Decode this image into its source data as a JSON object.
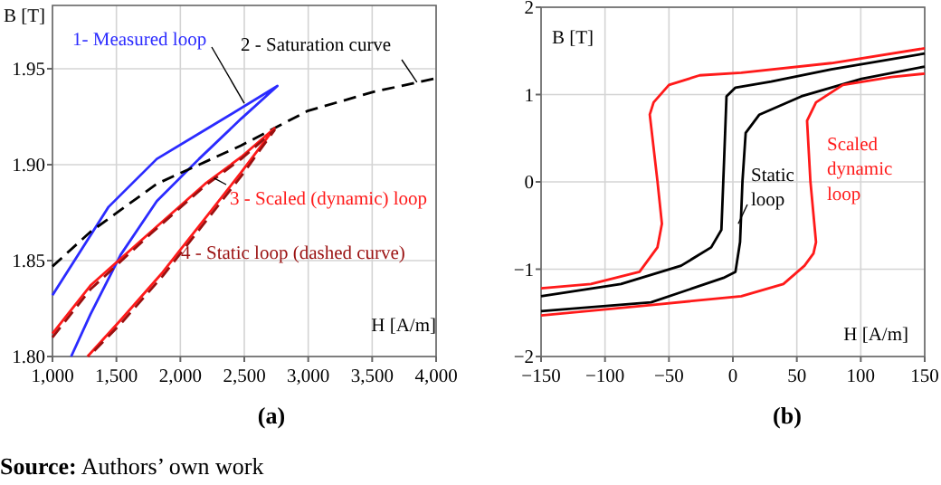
{
  "chart_data": [
    {
      "type": "line",
      "title": "(a)",
      "xlabel": "H [A/m]",
      "ylabel": "B [T]",
      "grid": true,
      "xlim": [
        1000,
        4000
      ],
      "ylim": [
        1.8,
        1.983
      ],
      "xticks": [
        {
          "value": 1000,
          "label": "1,000"
        },
        {
          "value": 1500,
          "label": "1,500"
        },
        {
          "value": 2000,
          "label": "2,000"
        },
        {
          "value": 2500,
          "label": "2,500"
        },
        {
          "value": 3000,
          "label": "3,000"
        },
        {
          "value": 3500,
          "label": "3,500"
        },
        {
          "value": 4000,
          "label": "4,000"
        }
      ],
      "yticks": [
        {
          "value": 1.8,
          "label": "1.80"
        },
        {
          "value": 1.85,
          "label": "1.85"
        },
        {
          "value": 1.9,
          "label": "1.90"
        },
        {
          "value": 1.95,
          "label": "1.95"
        }
      ],
      "series": [
        {
          "color": "#2b2bff",
          "line_style": "solid",
          "x": [
            1000,
            1439,
            1816,
            2241,
            2759,
            2476,
            2146,
            1816,
            1533,
            1297,
            1146
          ],
          "values": [
            1.832,
            1.878,
            1.903,
            1.92,
            1.941,
            1.924,
            1.903,
            1.881,
            1.853,
            1.822,
            1.8
          ]
        },
        {
          "color": "#000000",
          "line_style": "dashed",
          "x": [
            1000,
            1297,
            1816,
            2476,
            2995,
            3514,
            4000
          ],
          "values": [
            1.847,
            1.865,
            1.89,
            1.91,
            1.928,
            1.938,
            1.945
          ]
        },
        {
          "color": "#ff1a1a",
          "line_style": "solid",
          "x": [
            1000,
            1297,
            1769,
            2193,
            2476,
            2736,
            2476,
            2146,
            1863,
            1533,
            1274
          ],
          "values": [
            1.812,
            1.837,
            1.865,
            1.89,
            1.904,
            1.919,
            1.896,
            1.868,
            1.844,
            1.819,
            1.8
          ]
        },
        {
          "color": "#9a1010",
          "line_style": "dashed",
          "x": [
            1000,
            1297,
            1769,
            2193,
            2476,
            2736,
            2476,
            2146,
            1863,
            1533,
            1283
          ],
          "values": [
            1.81,
            1.835,
            1.864,
            1.889,
            1.903,
            1.918,
            1.894,
            1.866,
            1.842,
            1.817,
            1.8
          ]
        }
      ],
      "annotations": [
        {
          "text": "1- Measured loop",
          "x": 2500,
          "y": 1.932
        },
        {
          "text": "2 - Saturation curve",
          "x": 3850,
          "y": 1.943
        },
        {
          "text": "3 - Scaled (dynamic) loop",
          "x": 2264,
          "y": 1.893
        },
        "4 - Static loop (dashed curve)",
        "Source: Authors’ own work"
      ]
    },
    {
      "type": "line",
      "title": "(b)",
      "xlabel": "H [A/m]",
      "ylabel": "B [T]",
      "grid": true,
      "xlim": [
        -150,
        150
      ],
      "ylim": [
        -2,
        2
      ],
      "xticks": [
        {
          "value": -150,
          "label": "−150"
        },
        {
          "value": -100,
          "label": "−100"
        },
        {
          "value": -50,
          "label": "−50"
        },
        0,
        50,
        100,
        150
      ],
      "yticks": [
        {
          "value": -2,
          "label": "−2"
        },
        {
          "value": -1,
          "label": "−1"
        },
        0,
        1,
        2
      ],
      "series": [
        {
          "color": "#000000",
          "line_style": "solid",
          "x": [
            150,
            77,
            30,
            2,
            -5,
            -7.5,
            -9,
            -17,
            -40.5,
            -87.5,
            -150,
            null,
            -150,
            -64,
            -7.5,
            2,
            5.6,
            7.5,
            10,
            20.7,
            53.6,
            100.6,
            150
          ],
          "values": [
            1.47,
            1.29,
            1.15,
            1.08,
            0.98,
            0.01,
            -0.55,
            -0.75,
            -0.96,
            -1.17,
            -1.31,
            null,
            -1.48,
            -1.38,
            -1.1,
            -1.03,
            -0.69,
            0.01,
            0.56,
            0.77,
            0.98,
            1.18,
            1.32
          ]
        },
        {
          "color": "#ff1a1a",
          "line_style": "solid",
          "x": [
            150,
            77,
            6.6,
            -26,
            -50,
            -62,
            -65,
            -59,
            -55.5,
            -59,
            -73,
            -111,
            -150,
            null,
            -150,
            -64,
            6.6,
            39.5,
            56,
            63,
            65,
            60.6,
            58,
            65,
            86,
            124,
            150
          ],
          "values": [
            1.53,
            1.36,
            1.25,
            1.22,
            1.11,
            0.91,
            0.77,
            0.01,
            -0.48,
            -0.75,
            -1.03,
            -1.17,
            -1.22,
            null,
            -1.53,
            -1.41,
            -1.31,
            -1.17,
            -0.96,
            -0.82,
            -0.69,
            0.01,
            0.7,
            0.91,
            1.11,
            1.2,
            1.24
          ]
        }
      ],
      "annotations": [
        {
          "text": "Static loop",
          "x": 4.2,
          "y": -0.48
        },
        "Scaled dynamic loop"
      ]
    }
  ]
}
